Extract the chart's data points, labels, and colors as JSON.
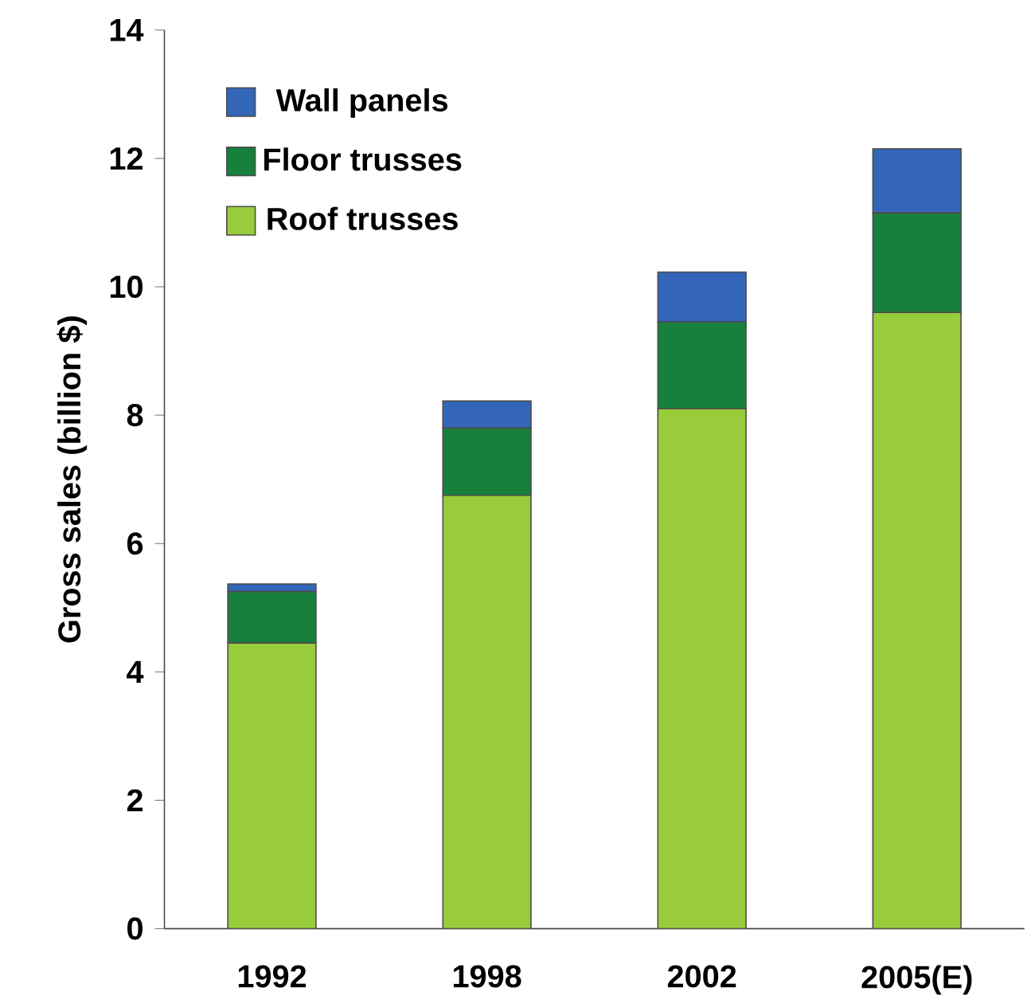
{
  "chart_data": {
    "type": "bar",
    "stacked": true,
    "ylabel": "Gross sales (billion $)",
    "categories": [
      "1992",
      "1998",
      "2002",
      "2005(E)"
    ],
    "series": [
      {
        "name": "Roof trusses",
        "color": "#99cc3a",
        "values": [
          4.45,
          6.75,
          8.1,
          9.6
        ]
      },
      {
        "name": "Floor trusses",
        "color": "#17803d",
        "values": [
          0.8,
          1.05,
          1.35,
          1.55
        ]
      },
      {
        "name": "Wall panels",
        "color": "#3366b8",
        "values": [
          0.12,
          0.42,
          0.78,
          1.0
        ]
      }
    ],
    "ylim": [
      0,
      14
    ],
    "yticks": [
      0,
      2,
      4,
      6,
      8,
      10,
      12,
      14
    ],
    "legend": "top left",
    "grid": false
  }
}
